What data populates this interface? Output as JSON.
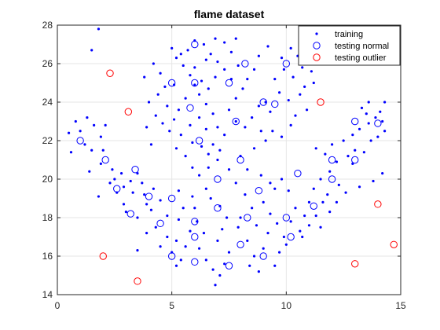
{
  "chart_data": {
    "type": "scatter",
    "title": "flame dataset",
    "xlabel": "",
    "ylabel": "",
    "xlim": [
      0,
      15
    ],
    "ylim": [
      14,
      28
    ],
    "xticks": [
      0,
      5,
      10,
      15
    ],
    "yticks": [
      14,
      16,
      18,
      20,
      22,
      24,
      26,
      28
    ],
    "grid": true,
    "legend_position": "top-right",
    "series": [
      {
        "name": "training",
        "marker": "dot",
        "color": "#0000ff",
        "points": [
          [
            1.8,
            27.8
          ],
          [
            1.5,
            26.7
          ],
          [
            0.5,
            22.4
          ],
          [
            0.8,
            23
          ],
          [
            1.3,
            23.2
          ],
          [
            1.0,
            22.5
          ],
          [
            1.6,
            22.8
          ],
          [
            1.2,
            21.8
          ],
          [
            0.6,
            21.4
          ],
          [
            1.5,
            21.5
          ],
          [
            1.9,
            22.2
          ],
          [
            2.1,
            22.8
          ],
          [
            2.0,
            21.5
          ],
          [
            1.9,
            20.8
          ],
          [
            1.4,
            20.4
          ],
          [
            2.4,
            20.5
          ],
          [
            2.5,
            20.0
          ],
          [
            2.8,
            20.3
          ],
          [
            2.3,
            19.8
          ],
          [
            2.6,
            19.3
          ],
          [
            1.8,
            19.1
          ],
          [
            2.9,
            19.6
          ],
          [
            3.2,
            19.9
          ],
          [
            3.5,
            20.3
          ],
          [
            3.7,
            19.8
          ],
          [
            3.3,
            19.3
          ],
          [
            2.9,
            18.7
          ],
          [
            3.0,
            18.3
          ],
          [
            3.5,
            18.0
          ],
          [
            3.9,
            18.7
          ],
          [
            3.8,
            19.2
          ],
          [
            4.2,
            19.5
          ],
          [
            4.1,
            18.4
          ],
          [
            4.5,
            18.9
          ],
          [
            4.3,
            17.5
          ],
          [
            3.9,
            17.2
          ],
          [
            3.5,
            16.3
          ],
          [
            4.5,
            16.5
          ],
          [
            4.8,
            17.0
          ],
          [
            5.2,
            16.8
          ],
          [
            5.0,
            16.2
          ],
          [
            5.2,
            15.5
          ],
          [
            5.4,
            15.8
          ],
          [
            5.6,
            16.5
          ],
          [
            5.8,
            17.3
          ],
          [
            5.3,
            17.9
          ],
          [
            4.8,
            18.1
          ],
          [
            5.5,
            18.5
          ],
          [
            5.3,
            19.4
          ],
          [
            5.9,
            19.1
          ],
          [
            6.0,
            18.5
          ],
          [
            6.1,
            17.8
          ],
          [
            6.4,
            17.2
          ],
          [
            6.2,
            16.4
          ],
          [
            6.5,
            15.8
          ],
          [
            6.8,
            15.3
          ],
          [
            6.9,
            14.5
          ],
          [
            7.1,
            15.0
          ],
          [
            7.3,
            15.6
          ],
          [
            7.5,
            16.2
          ],
          [
            7.0,
            16.8
          ],
          [
            7.2,
            17.4
          ],
          [
            7.4,
            18.0
          ],
          [
            7.1,
            18.6
          ],
          [
            6.7,
            19.0
          ],
          [
            6.5,
            19.5
          ],
          [
            6.2,
            20.2
          ],
          [
            5.9,
            20.6
          ],
          [
            6.6,
            20.6
          ],
          [
            7.0,
            21.0
          ],
          [
            7.5,
            20.5
          ],
          [
            7.8,
            19.8
          ],
          [
            8.2,
            19.2
          ],
          [
            8.5,
            18.5
          ],
          [
            8.0,
            18.0
          ],
          [
            7.9,
            17.5
          ],
          [
            8.3,
            16.8
          ],
          [
            8.6,
            16.0
          ],
          [
            8.4,
            15.5
          ],
          [
            8.8,
            15.2
          ],
          [
            9.0,
            16.4
          ],
          [
            9.2,
            17.2
          ],
          [
            9.3,
            18.2
          ],
          [
            9.0,
            18.8
          ],
          [
            9.5,
            19.5
          ],
          [
            9.8,
            20.0
          ],
          [
            10.1,
            19.4
          ],
          [
            10.4,
            18.5
          ],
          [
            10.2,
            17.8
          ],
          [
            10.6,
            17.3
          ],
          [
            10.8,
            18.1
          ],
          [
            11.0,
            18.8
          ],
          [
            11.2,
            19.5
          ],
          [
            11.5,
            20.0
          ],
          [
            11.9,
            20.4
          ],
          [
            12.2,
            20.9
          ],
          [
            11.7,
            21.3
          ],
          [
            11.3,
            21.6
          ],
          [
            12.0,
            21.8
          ],
          [
            12.5,
            22.0
          ],
          [
            12.9,
            22.3
          ],
          [
            13.2,
            22.6
          ],
          [
            13.6,
            22.9
          ],
          [
            13.9,
            23.2
          ],
          [
            14.1,
            23.5
          ],
          [
            14.2,
            23.0
          ],
          [
            14.3,
            22.5
          ],
          [
            14.0,
            22.2
          ],
          [
            13.7,
            22.0
          ],
          [
            13.5,
            23.4
          ],
          [
            13.3,
            23.7
          ],
          [
            13.6,
            24.0
          ],
          [
            14.3,
            24.0
          ],
          [
            13.0,
            21.5
          ],
          [
            12.7,
            21.2
          ],
          [
            13.4,
            21.4
          ],
          [
            12.9,
            20.8
          ],
          [
            12.3,
            19.7
          ],
          [
            11.8,
            19.2
          ],
          [
            11.6,
            18.8
          ],
          [
            11.9,
            18.3
          ],
          [
            12.2,
            18.8
          ],
          [
            12.6,
            19.3
          ],
          [
            13.2,
            19.6
          ],
          [
            13.8,
            19.9
          ],
          [
            14.2,
            20.3
          ],
          [
            11.3,
            18.1
          ],
          [
            11.0,
            17.6
          ],
          [
            10.7,
            17.0
          ],
          [
            11.5,
            17.5
          ],
          [
            9.5,
            15.5
          ],
          [
            9.7,
            16.2
          ],
          [
            9.9,
            17.0
          ],
          [
            10.0,
            16.6
          ],
          [
            9.6,
            17.7
          ],
          [
            8.7,
            17.6
          ],
          [
            9.3,
            19.8
          ],
          [
            8.9,
            20.2
          ],
          [
            8.3,
            20.5
          ],
          [
            8.0,
            21.2
          ],
          [
            8.6,
            21.6
          ],
          [
            9.1,
            22.0
          ],
          [
            9.4,
            22.5
          ],
          [
            9.8,
            22.2
          ],
          [
            10.2,
            22.8
          ],
          [
            10.4,
            23.3
          ],
          [
            10.1,
            24.1
          ],
          [
            9.7,
            24.5
          ],
          [
            9.5,
            25.2
          ],
          [
            9.9,
            25.7
          ],
          [
            10.3,
            25.3
          ],
          [
            10.5,
            26.4
          ],
          [
            10.7,
            25.8
          ],
          [
            11.1,
            25.6
          ],
          [
            10.2,
            26.8
          ],
          [
            9.8,
            26.3
          ],
          [
            9.2,
            26.9
          ],
          [
            8.8,
            26.4
          ],
          [
            8.6,
            25.7
          ],
          [
            8.3,
            25.2
          ],
          [
            8.1,
            24.7
          ],
          [
            7.8,
            24.2
          ],
          [
            7.5,
            23.6
          ],
          [
            7.8,
            23.0
          ],
          [
            8.2,
            22.7
          ],
          [
            8.5,
            23.2
          ],
          [
            8.8,
            23.8
          ],
          [
            9.1,
            24.0
          ],
          [
            9.3,
            23.5
          ],
          [
            8.9,
            22.5
          ],
          [
            7.3,
            22.3
          ],
          [
            7.0,
            22.7
          ],
          [
            6.8,
            23.4
          ],
          [
            6.5,
            23.9
          ],
          [
            6.2,
            24.4
          ],
          [
            6.0,
            24.9
          ],
          [
            5.8,
            25.4
          ],
          [
            5.5,
            25.9
          ],
          [
            5.2,
            26.3
          ],
          [
            5.0,
            26.8
          ],
          [
            5.4,
            26.5
          ],
          [
            5.7,
            26.7
          ],
          [
            6.0,
            27.2
          ],
          [
            6.4,
            27.0
          ],
          [
            6.7,
            26.5
          ],
          [
            7.0,
            26.1
          ],
          [
            7.3,
            25.7
          ],
          [
            7.6,
            25.2
          ],
          [
            7.9,
            25.9
          ],
          [
            7.6,
            26.6
          ],
          [
            7.3,
            27.1
          ],
          [
            6.9,
            27.3
          ],
          [
            7.8,
            27.3
          ],
          [
            6.5,
            26.2
          ],
          [
            6.9,
            25.3
          ],
          [
            6.6,
            24.7
          ],
          [
            6.3,
            25.1
          ],
          [
            6.0,
            25.8
          ],
          [
            5.6,
            24.2
          ],
          [
            5.3,
            23.6
          ],
          [
            5.1,
            23.1
          ],
          [
            4.9,
            22.5
          ],
          [
            5.4,
            22.3
          ],
          [
            5.8,
            22.8
          ],
          [
            6.2,
            23.2
          ],
          [
            6.5,
            22.6
          ],
          [
            6.8,
            21.8
          ],
          [
            7.1,
            21.5
          ],
          [
            6.6,
            21.3
          ],
          [
            6.3,
            21.7
          ],
          [
            5.9,
            21.9
          ],
          [
            5.6,
            21.2
          ],
          [
            5.2,
            21.6
          ],
          [
            4.8,
            23.8
          ],
          [
            4.4,
            24.4
          ],
          [
            4.0,
            24.0
          ],
          [
            3.8,
            25.3
          ],
          [
            4.2,
            26.0
          ],
          [
            4.5,
            25.5
          ],
          [
            4.7,
            24.8
          ],
          [
            5.1,
            24.9
          ],
          [
            4.3,
            23.3
          ],
          [
            4.6,
            22.9
          ],
          [
            3.9,
            22.7
          ],
          [
            4.1,
            21.8
          ],
          [
            10.8,
            24.8
          ],
          [
            11.2,
            25.0
          ],
          [
            10.6,
            24.4
          ],
          [
            10.9,
            23.6
          ]
        ]
      },
      {
        "name": "testing normal",
        "marker": "circle",
        "color": "#0000ff",
        "points": [
          [
            5.0,
            25.0
          ],
          [
            6.0,
            27.0
          ],
          [
            6.0,
            25.0
          ],
          [
            7.5,
            25.0
          ],
          [
            8.2,
            26.0
          ],
          [
            10.0,
            26.0
          ],
          [
            5.8,
            23.7
          ],
          [
            7.8,
            23.0
          ],
          [
            9.0,
            24.0
          ],
          [
            9.5,
            23.9
          ],
          [
            6.2,
            22.0
          ],
          [
            1.0,
            22.0
          ],
          [
            2.1,
            21.0
          ],
          [
            2.6,
            19.5
          ],
          [
            3.4,
            20.5
          ],
          [
            4.0,
            19.1
          ],
          [
            3.2,
            18.2
          ],
          [
            4.5,
            17.7
          ],
          [
            5.0,
            19.0
          ],
          [
            6.0,
            17.8
          ],
          [
            6.0,
            17.0
          ],
          [
            5.0,
            16.0
          ],
          [
            6.0,
            15.7
          ],
          [
            7.0,
            18.5
          ],
          [
            7.0,
            20.0
          ],
          [
            7.5,
            15.5
          ],
          [
            8.0,
            21.0
          ],
          [
            8.3,
            18.0
          ],
          [
            8.8,
            19.4
          ],
          [
            8.0,
            16.6
          ],
          [
            9.0,
            16.0
          ],
          [
            10.0,
            18.0
          ],
          [
            10.2,
            17.0
          ],
          [
            10.5,
            20.3
          ],
          [
            11.2,
            18.6
          ],
          [
            12.0,
            21.0
          ],
          [
            12.0,
            20.0
          ],
          [
            13.0,
            21.0
          ],
          [
            13.0,
            23.0
          ],
          [
            14.0,
            22.9
          ]
        ]
      },
      {
        "name": "testing outlier",
        "marker": "circle",
        "color": "#ff0000",
        "points": [
          [
            2.3,
            25.5
          ],
          [
            3.1,
            23.5
          ],
          [
            11.5,
            24.0
          ],
          [
            2.0,
            16.0
          ],
          [
            3.5,
            14.7
          ],
          [
            13.0,
            15.6
          ],
          [
            14.0,
            18.7
          ],
          [
            14.7,
            16.6
          ]
        ]
      }
    ]
  }
}
